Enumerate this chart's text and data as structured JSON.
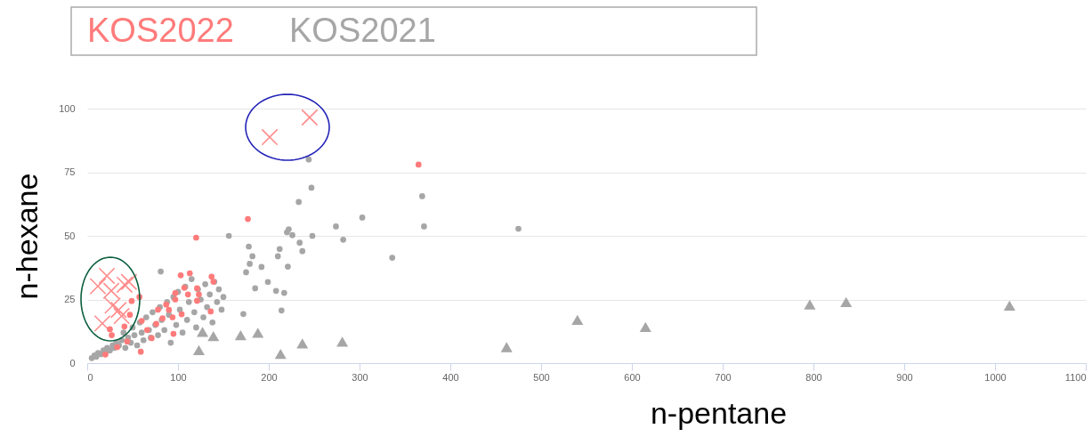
{
  "chart_data": {
    "type": "scatter",
    "xlabel": "n-pentane",
    "ylabel": "n-hexane",
    "xlim": [
      0,
      1100
    ],
    "xticks": [
      0,
      100,
      200,
      300,
      400,
      500,
      600,
      700,
      800,
      900,
      1000,
      1100
    ],
    "ylim": [
      0,
      100
    ],
    "yticks": [
      0,
      25,
      50,
      75,
      100
    ],
    "grid": "y",
    "legend": "top left",
    "series": [
      {
        "name": "KOS2022",
        "color": "#ff7b7b",
        "marker": "circle",
        "x": [
          20,
          25,
          27,
          33,
          41,
          44,
          47,
          49,
          57.5,
          59,
          60,
          66,
          71,
          76,
          78,
          83,
          87,
          90,
          94,
          95,
          97,
          97,
          103,
          104,
          107,
          111,
          113,
          120,
          121,
          121,
          123,
          136,
          137,
          139,
          177,
          365
        ],
        "values": [
          3.4,
          13.3,
          11,
          6.3,
          14.4,
          8.5,
          19,
          24.4,
          26,
          4.5,
          16.6,
          13,
          9.8,
          15.4,
          21,
          17.6,
          23,
          20.9,
          18,
          11.5,
          25,
          27.5,
          34.5,
          19.2,
          29.6,
          27,
          35.3,
          49.3,
          29.4,
          24.5,
          27,
          20.3,
          34,
          32,
          56.6,
          78
        ]
      },
      {
        "color": "#ff8c8c",
        "marker": "cross",
        "x": [
          11.8,
          16.7,
          21.6,
          26.5,
          28,
          34.6,
          37.9,
          41.2,
          46,
          201,
          245
        ],
        "values": [
          30.2,
          15.6,
          34.3,
          28.4,
          22.6,
          20.9,
          18.5,
          30.8,
          31.9,
          88.8,
          96.5
        ]
      },
      {
        "name": "KOS2021",
        "color": "#a6a6a6",
        "marker": "circle",
        "x": [
          5,
          8,
          10,
          12,
          15,
          18,
          20,
          22,
          25,
          28,
          30,
          32,
          35,
          38,
          40,
          42,
          45,
          48,
          50,
          52,
          55,
          58,
          60,
          62,
          65,
          68,
          70,
          72,
          75,
          78,
          80,
          81,
          82,
          85,
          88,
          90,
          92,
          95,
          98,
          100,
          102,
          105,
          108,
          110,
          112,
          115,
          118,
          120,
          122,
          125,
          128,
          130,
          132,
          135,
          138,
          140,
          143,
          145,
          148,
          150,
          156,
          172,
          175,
          178,
          179,
          182,
          185,
          192,
          199,
          208,
          210,
          212,
          214,
          217,
          220,
          221,
          222,
          226,
          233,
          234,
          237,
          244,
          247,
          248,
          274,
          282,
          303,
          336,
          369,
          371,
          475
        ],
        "values": [
          2,
          3,
          2.5,
          4,
          3.5,
          5,
          4,
          6,
          5,
          7,
          6,
          8,
          7,
          9,
          12,
          6,
          10,
          8,
          14,
          11,
          7,
          16,
          12,
          9,
          18,
          13,
          10,
          20,
          15,
          11,
          22,
          36,
          17,
          13,
          24,
          19,
          8,
          26,
          15,
          28,
          21,
          12,
          30,
          17,
          24,
          33,
          20,
          14,
          29,
          25,
          18,
          31,
          22,
          27,
          16,
          32,
          24,
          29,
          21,
          26,
          50,
          19.3,
          35.7,
          45.8,
          39,
          42,
          29.4,
          37.8,
          31.9,
          28.4,
          42,
          44.8,
          20.7,
          27.6,
          51.4,
          37.9,
          52.6,
          50.3,
          63.3,
          47.3,
          44,
          80,
          68.9,
          50,
          53.7,
          48.5,
          57.2,
          41.4,
          65.6,
          53.7,
          52.8
        ]
      },
      {
        "color": "#a6a6a6",
        "marker": "triangle",
        "x": [
          123,
          127,
          139,
          169,
          188,
          213,
          237,
          281,
          462,
          540,
          615,
          796,
          836,
          1016
        ],
        "values": [
          5.1,
          12.3,
          10.6,
          11,
          11.9,
          3.6,
          7.7,
          8.4,
          6.3,
          17,
          14.2,
          23,
          24,
          22.6
        ]
      }
    ]
  }
}
